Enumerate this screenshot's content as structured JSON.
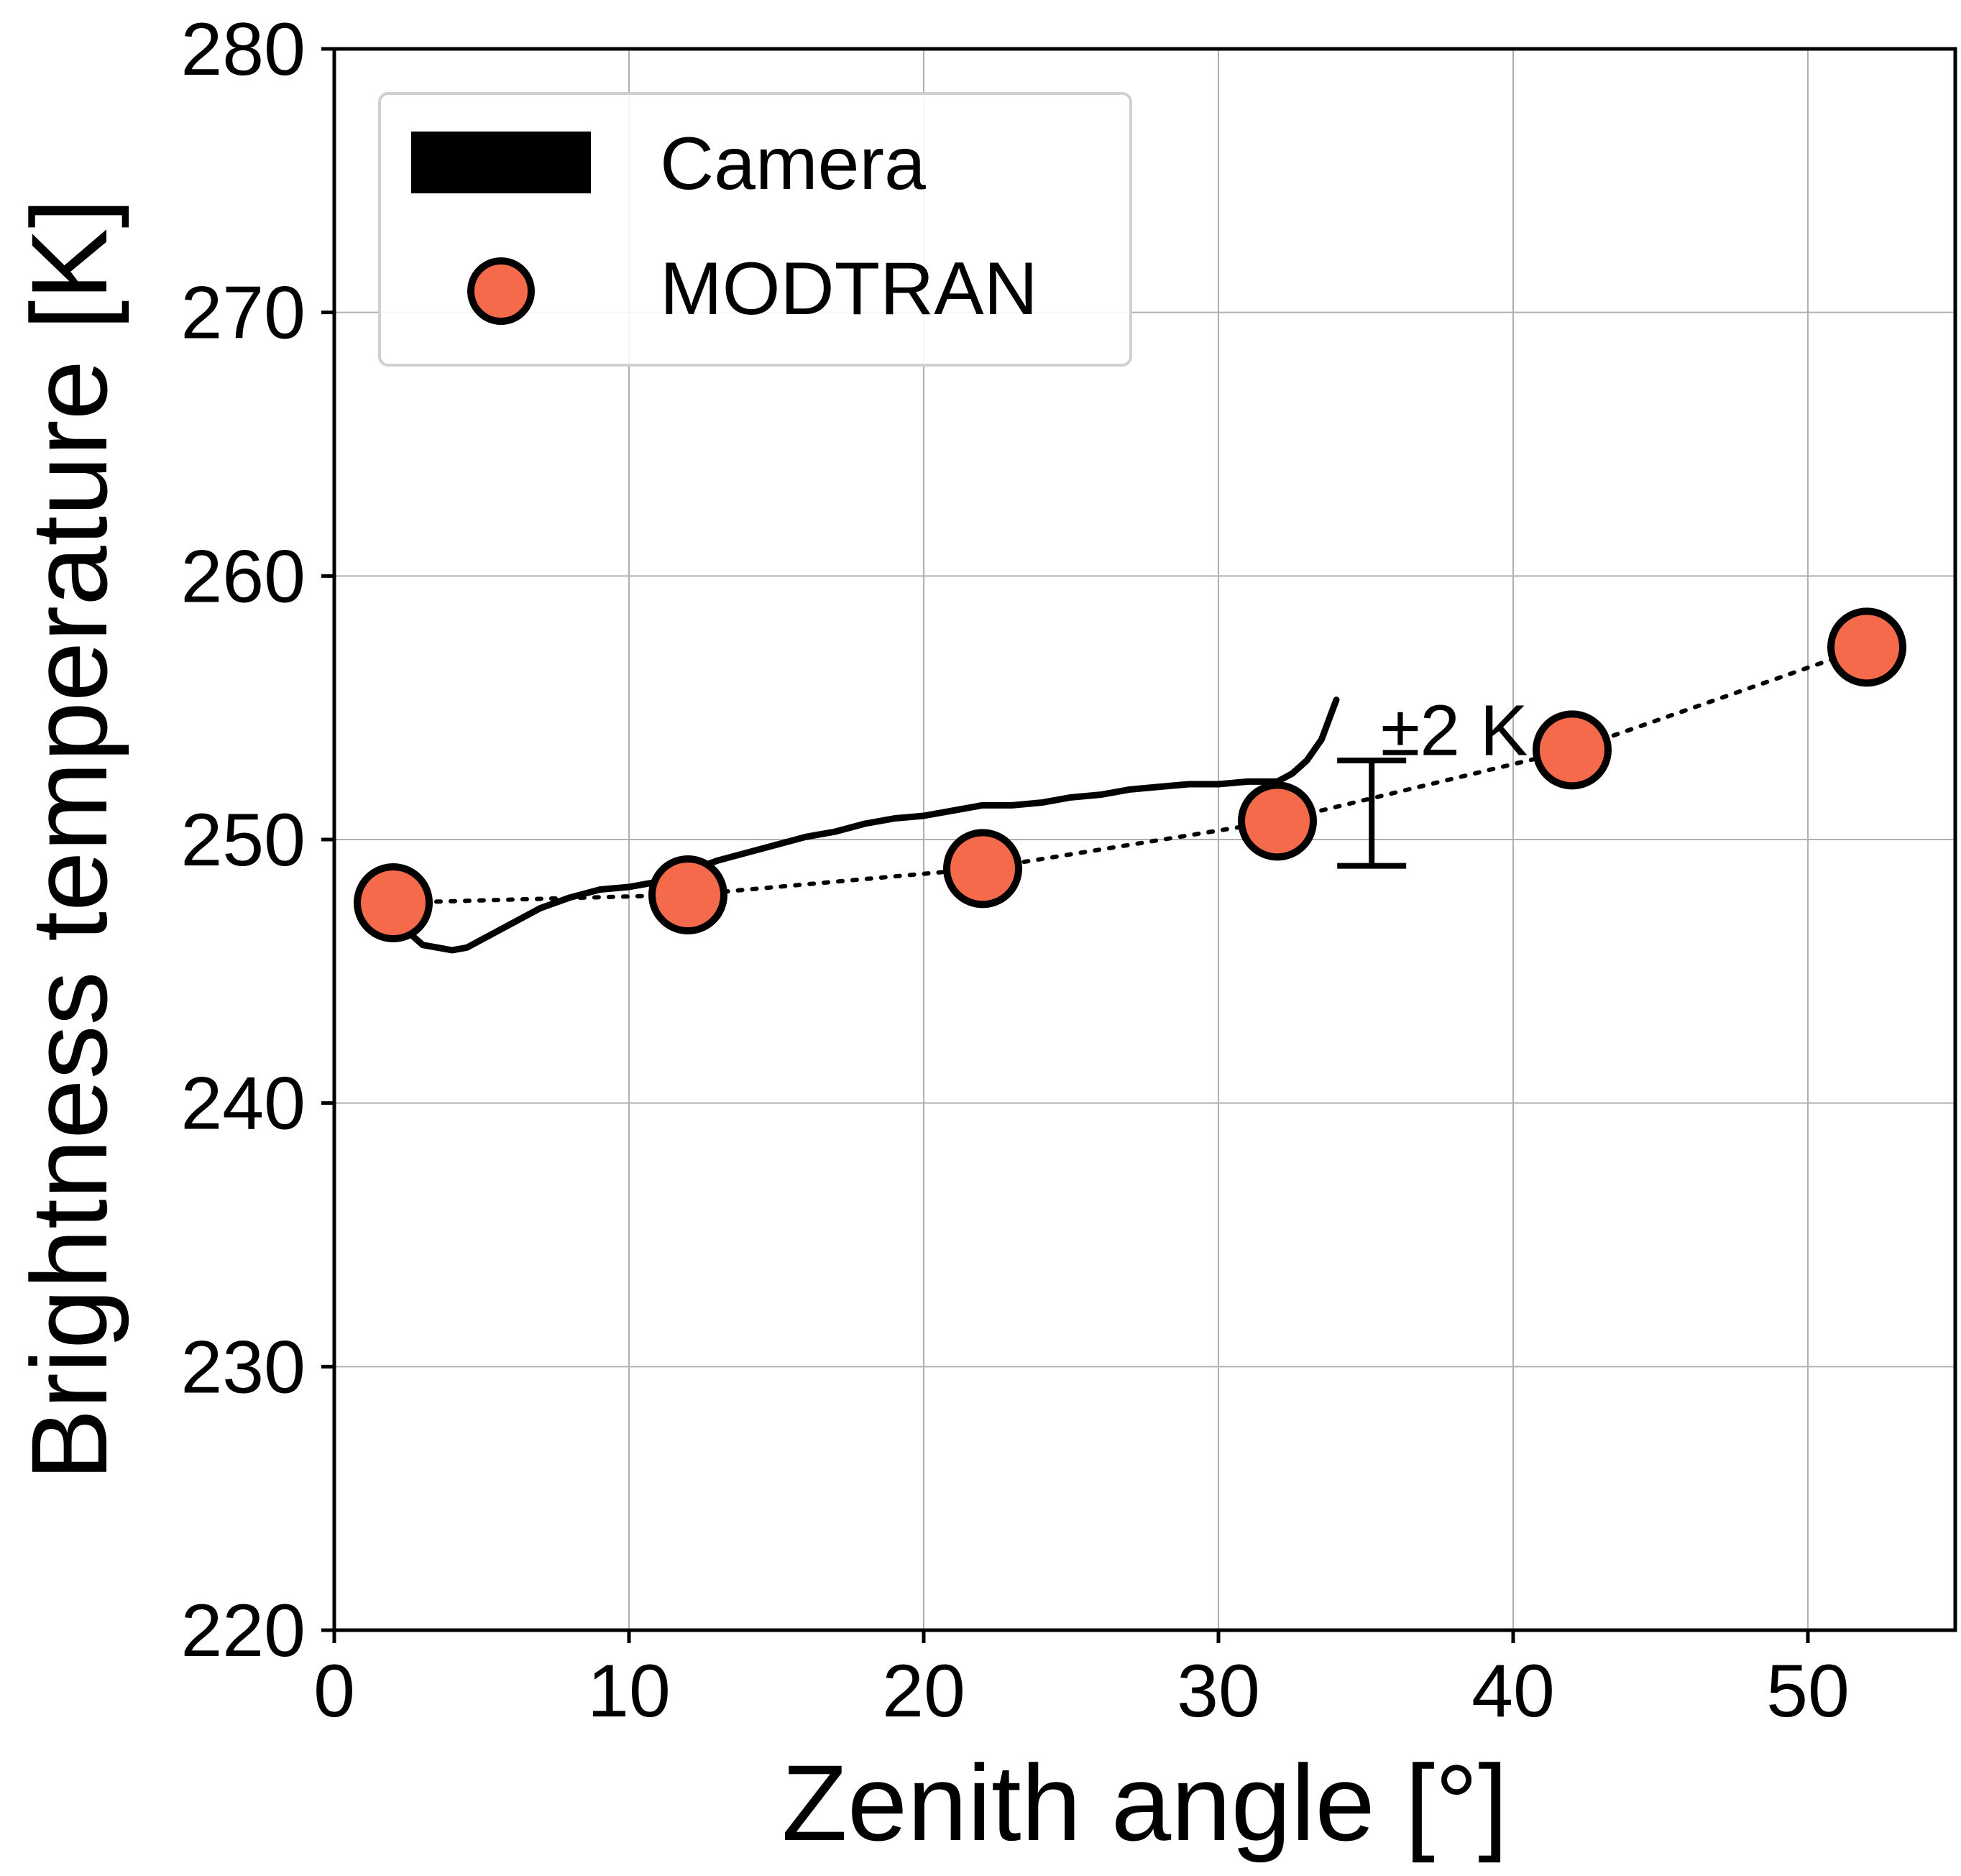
{
  "chart_data": {
    "type": "scatter",
    "title": "",
    "xlabel": "Zenith angle [°]",
    "ylabel": "Brightness temperature [K]",
    "xlim": [
      0,
      55
    ],
    "ylim": [
      220,
      280
    ],
    "xticks": [
      0,
      10,
      20,
      30,
      40,
      50
    ],
    "yticks": [
      220,
      230,
      240,
      250,
      260,
      270,
      280
    ],
    "grid": true,
    "legend_position": "top-left",
    "series": [
      {
        "name": "Camera",
        "kind": "line",
        "color": "#000000",
        "points": [
          [
            2.0,
            247.3
          ],
          [
            2.5,
            246.5
          ],
          [
            3.0,
            246.0
          ],
          [
            3.5,
            245.9
          ],
          [
            4.0,
            245.8
          ],
          [
            4.5,
            245.9
          ],
          [
            5.0,
            246.2
          ],
          [
            6.0,
            246.8
          ],
          [
            7.0,
            247.4
          ],
          [
            8.0,
            247.8
          ],
          [
            9.0,
            248.1
          ],
          [
            10.0,
            248.2
          ],
          [
            11.0,
            248.4
          ],
          [
            12.0,
            248.8
          ],
          [
            13.0,
            249.2
          ],
          [
            14.0,
            249.5
          ],
          [
            15.0,
            249.8
          ],
          [
            16.0,
            250.1
          ],
          [
            17.0,
            250.3
          ],
          [
            18.0,
            250.6
          ],
          [
            19.0,
            250.8
          ],
          [
            20.0,
            250.9
          ],
          [
            21.0,
            251.1
          ],
          [
            22.0,
            251.3
          ],
          [
            23.0,
            251.3
          ],
          [
            24.0,
            251.4
          ],
          [
            25.0,
            251.6
          ],
          [
            26.0,
            251.7
          ],
          [
            27.0,
            251.9
          ],
          [
            28.0,
            252.0
          ],
          [
            29.0,
            252.1
          ],
          [
            30.0,
            252.1
          ],
          [
            31.0,
            252.2
          ],
          [
            32.0,
            252.2
          ],
          [
            32.5,
            252.5
          ],
          [
            33.0,
            253.0
          ],
          [
            33.5,
            253.8
          ],
          [
            34.0,
            255.3
          ]
        ]
      },
      {
        "name": "MODTRAN",
        "kind": "scatter",
        "color": "#f46a4b",
        "points": [
          [
            2,
            247.6
          ],
          [
            12,
            247.9
          ],
          [
            22,
            248.9
          ],
          [
            32,
            250.7
          ],
          [
            42,
            253.4
          ],
          [
            52,
            257.3
          ]
        ]
      }
    ],
    "annotations": [
      {
        "text": "±2 K",
        "x": 35.5,
        "y": 253.2
      }
    ],
    "errorbar": {
      "x": 35.2,
      "y_low": 249.0,
      "y_high": 253.0
    }
  }
}
